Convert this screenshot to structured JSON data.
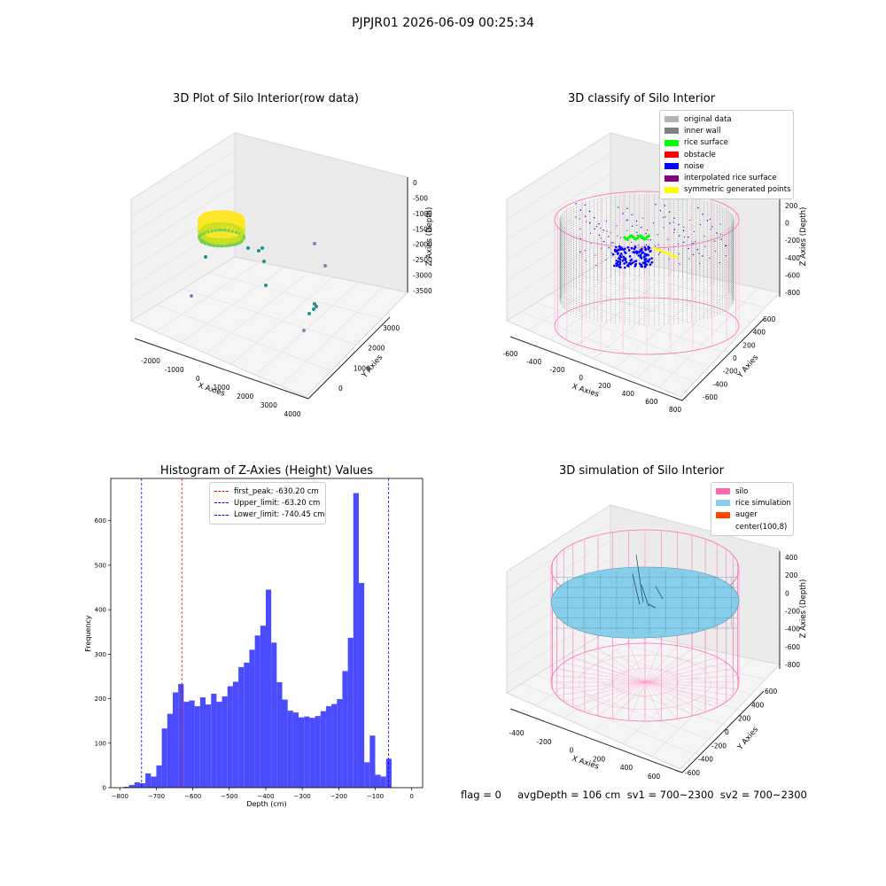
{
  "figure": {
    "title": "PJPJR01 2026-06-09 00:25:34",
    "footer": "flag = 0     avgDepth = 106 cm  sv1 = 700~2300  sv2 = 700~2300"
  },
  "chart_data": [
    {
      "type": "scatter",
      "projection": "3d",
      "title": "3D Plot of Silo Interior(row data)",
      "xlabel": "X Axies",
      "ylabel": "Y Axies",
      "zlabel": "Z Axies (Depth)",
      "xticks": [
        "-2000",
        "-1000",
        "0",
        "1000",
        "2000",
        "3000",
        "4000"
      ],
      "yticks": [
        "0",
        "1000",
        "2000",
        "3000"
      ],
      "zticks": [
        "0",
        "-500",
        "-1000",
        "-1500",
        "-2000",
        "-2500",
        "-3000",
        "-3500"
      ],
      "colormap": [
        "#440154",
        "#21908c",
        "#7ad151",
        "#fde725"
      ]
    },
    {
      "type": "scatter",
      "projection": "3d",
      "title": "3D classify of Silo Interior",
      "xlabel": "X Axies",
      "ylabel": "Y Axies",
      "zlabel": "Z Axies (Depth)",
      "xticks": [
        "-600",
        "-400",
        "-200",
        "0",
        "200",
        "400",
        "600",
        "800"
      ],
      "yticks": [
        "-600",
        "-400",
        "-200",
        "0",
        "200",
        "400",
        "600"
      ],
      "zticks": [
        "200",
        "0",
        "-200",
        "-400",
        "-600",
        "-800"
      ],
      "legend": [
        {
          "label": "original data",
          "color": "#b4b4b4"
        },
        {
          "label": "inner wall",
          "color": "#808080"
        },
        {
          "label": "rice surface",
          "color": "#00ff00"
        },
        {
          "label": "obstacle",
          "color": "#ff0000"
        },
        {
          "label": "noise",
          "color": "#0000ff"
        },
        {
          "label": "interpolated rice surface",
          "color": "#800080"
        },
        {
          "label": "symmetric generated points",
          "color": "#ffff00"
        }
      ],
      "legend_loc": "upper right"
    },
    {
      "type": "bar",
      "title": "Histogram of Z-Axies (Height) Values",
      "xlabel": "Depth (cm)",
      "ylabel": "Frequency",
      "bar_color": "#4c4cff",
      "xlim": [
        -825,
        30
      ],
      "ylim": [
        0,
        695
      ],
      "xticks": [
        -800,
        -700,
        -600,
        -500,
        -400,
        -300,
        -200,
        -100,
        0
      ],
      "yticks": [
        0,
        100,
        200,
        300,
        400,
        500,
        600
      ],
      "bin_start": -790,
      "bin_width": 15,
      "values": [
        2,
        6,
        12,
        10,
        32,
        25,
        50,
        133,
        166,
        214,
        233,
        193,
        196,
        183,
        203,
        187,
        211,
        193,
        205,
        228,
        238,
        271,
        281,
        310,
        342,
        364,
        445,
        326,
        237,
        198,
        173,
        169,
        158,
        160,
        157,
        161,
        172,
        183,
        188,
        199,
        262,
        337,
        662,
        460,
        57,
        117,
        29,
        25,
        65
      ],
      "lines": [
        {
          "label": "first_peak: -630.20 cm",
          "x": -630.2,
          "color": "#ff0000"
        },
        {
          "label": "Upper_limit: -63.20 cm",
          "x": -63.2,
          "color": "#0000ff"
        },
        {
          "label": "Lower_limit: -740.45 cm",
          "x": -740.45,
          "color": "#0000ff"
        }
      ],
      "legend_loc": "upper center"
    },
    {
      "type": "surface",
      "projection": "3d",
      "title": "3D simulation of Silo Interior",
      "xlabel": "X Axies",
      "ylabel": "Y Axies",
      "zlabel": "Z Axies (Depth)",
      "xticks": [
        "-400",
        "-200",
        "0",
        "200",
        "400",
        "600"
      ],
      "yticks": [
        "-600",
        "-400",
        "-200",
        "0",
        "200",
        "400",
        "600"
      ],
      "zticks": [
        "400",
        "200",
        "0",
        "-200",
        "-400",
        "-600",
        "-800"
      ],
      "legend": [
        {
          "label": "silo",
          "color": "#ff69b4"
        },
        {
          "label": "rice simulation",
          "color": "#87ceeb"
        },
        {
          "label": "auger",
          "color": "#ff4500"
        },
        {
          "label": "center(100,8)",
          "color": "#ffffff"
        }
      ],
      "legend_loc": "upper right"
    }
  ]
}
